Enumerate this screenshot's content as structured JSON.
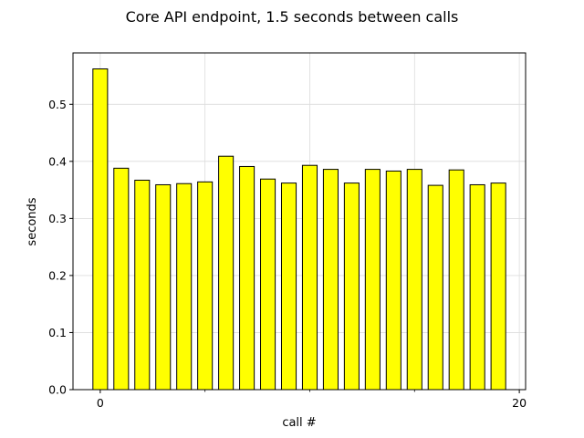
{
  "chart_data": {
    "type": "bar",
    "title": "Core API endpoint, 1.5 seconds between calls",
    "xlabel": "call #",
    "ylabel": "seconds",
    "x": [
      0,
      1,
      2,
      3,
      4,
      5,
      6,
      7,
      8,
      9,
      10,
      11,
      12,
      13,
      14,
      15,
      16,
      17,
      18,
      19
    ],
    "values": [
      0.562,
      0.388,
      0.367,
      0.359,
      0.361,
      0.364,
      0.409,
      0.391,
      0.369,
      0.362,
      0.393,
      0.386,
      0.362,
      0.386,
      0.383,
      0.386,
      0.358,
      0.385,
      0.359,
      0.362
    ],
    "xlim": [
      -1.3,
      20.3
    ],
    "ylim": [
      0,
      0.59
    ],
    "xticks": [
      0,
      20
    ],
    "xticks_minor": [
      5,
      10,
      15
    ],
    "yticks": [
      0.0,
      0.1,
      0.2,
      0.3,
      0.4,
      0.5
    ],
    "ytick_labels": [
      "0.0",
      "0.1",
      "0.2",
      "0.3",
      "0.4",
      "0.5"
    ],
    "grid": true,
    "bar_color": "#ffff00",
    "bar_edge_color": "#000000",
    "grid_color": "#dcdcdc"
  }
}
